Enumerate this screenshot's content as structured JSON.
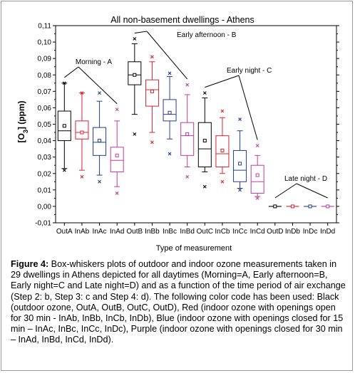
{
  "chart_data": {
    "type": "box",
    "title": "All non-basement dwellings - Athens",
    "xlabel": "Type of measurement",
    "ylabel_main": "[O",
    "ylabel_sub": "3",
    "ylabel_tail": "] (ppm)",
    "ylim": [
      -0.01,
      0.11
    ],
    "yticks": [
      "-0,01",
      "0,00",
      "0,01",
      "0,02",
      "0,03",
      "0,04",
      "0,05",
      "0,06",
      "0,07",
      "0,08",
      "0,09",
      "0,10",
      "0,11"
    ],
    "categories": [
      "OutA",
      "InAb",
      "InAc",
      "InAd",
      "OutB",
      "InBb",
      "InBc",
      "InBd",
      "OutC",
      "InCb",
      "InCc",
      "InCd",
      "OutD",
      "InDb",
      "InDc",
      "InDd"
    ],
    "colors": {
      "out": "#000000",
      "b": "#e0202a",
      "c": "#1f3f8f",
      "d": "#c03c98"
    },
    "boxes": [
      {
        "cat": "OutA",
        "color": "out",
        "min": 0.023,
        "q1": 0.04,
        "median": 0.046,
        "q3": 0.058,
        "max": 0.075,
        "mean": 0.049,
        "low": 0.022,
        "high": 0.075
      },
      {
        "cat": "InAb",
        "color": "b",
        "min": 0.022,
        "q1": 0.041,
        "median": 0.045,
        "q3": 0.052,
        "max": 0.069,
        "mean": 0.045,
        "low": 0.018,
        "high": 0.069
      },
      {
        "cat": "InAc",
        "color": "c",
        "min": 0.019,
        "q1": 0.031,
        "median": 0.039,
        "q3": 0.048,
        "max": 0.064,
        "mean": 0.04,
        "low": 0.015,
        "high": 0.069
      },
      {
        "cat": "InAd",
        "color": "d",
        "min": 0.012,
        "q1": 0.021,
        "median": 0.028,
        "q3": 0.036,
        "max": 0.052,
        "mean": 0.031,
        "low": 0.008,
        "high": 0.059
      },
      {
        "cat": "OutB",
        "color": "out",
        "min": 0.056,
        "q1": 0.074,
        "median": 0.08,
        "q3": 0.088,
        "max": 0.099,
        "mean": 0.08,
        "low": 0.044,
        "high": 0.102
      },
      {
        "cat": "InBb",
        "color": "b",
        "min": 0.045,
        "q1": 0.061,
        "median": 0.071,
        "q3": 0.077,
        "max": 0.088,
        "mean": 0.07,
        "low": 0.039,
        "high": 0.091
      },
      {
        "cat": "InBc",
        "color": "c",
        "min": 0.041,
        "q1": 0.052,
        "median": 0.056,
        "q3": 0.065,
        "max": 0.079,
        "mean": 0.057,
        "low": 0.032,
        "high": 0.081
      },
      {
        "cat": "InBd",
        "color": "d",
        "min": 0.024,
        "q1": 0.031,
        "median": 0.043,
        "q3": 0.051,
        "max": 0.068,
        "mean": 0.044,
        "low": 0.018,
        "high": 0.074
      },
      {
        "cat": "OutC",
        "color": "out",
        "min": 0.021,
        "q1": 0.024,
        "median": 0.035,
        "q3": 0.051,
        "max": 0.066,
        "mean": 0.04,
        "low": 0.012,
        "high": 0.069
      },
      {
        "cat": "InCb",
        "color": "b",
        "min": 0.02,
        "q1": 0.024,
        "median": 0.032,
        "q3": 0.043,
        "max": 0.054,
        "mean": 0.034,
        "low": 0.015,
        "high": 0.058
      },
      {
        "cat": "InCc",
        "color": "c",
        "min": 0.011,
        "q1": 0.015,
        "median": 0.022,
        "q3": 0.034,
        "max": 0.046,
        "mean": 0.026,
        "low": 0.01,
        "high": 0.053
      },
      {
        "cat": "InCd",
        "color": "d",
        "min": 0.006,
        "q1": 0.008,
        "median": 0.015,
        "q3": 0.025,
        "max": 0.031,
        "mean": 0.019,
        "low": 0.005,
        "high": 0.037
      },
      {
        "cat": "OutD",
        "color": "out",
        "min": 0.0,
        "q1": 0.0,
        "median": 0.0,
        "q3": 0.0,
        "max": 0.0,
        "mean": 0.0,
        "low": 0.0,
        "high": 0.0
      },
      {
        "cat": "InDb",
        "color": "b",
        "min": 0.0,
        "q1": 0.0,
        "median": 0.0,
        "q3": 0.0,
        "max": 0.0,
        "mean": 0.0,
        "low": 0.0,
        "high": 0.0
      },
      {
        "cat": "InDc",
        "color": "c",
        "min": 0.0,
        "q1": 0.0,
        "median": 0.0,
        "q3": 0.0,
        "max": 0.0,
        "mean": 0.0,
        "low": 0.0,
        "high": 0.0
      },
      {
        "cat": "InDd",
        "color": "d",
        "min": 0.0,
        "q1": 0.0,
        "median": 0.0,
        "q3": 0.0,
        "max": 0.0,
        "mean": 0.0,
        "low": 0.0,
        "high": 0.0
      }
    ],
    "annotations": [
      {
        "text": "Morning - A",
        "targets": [
          "OutA",
          "InAd"
        ]
      },
      {
        "text": "Early afternoon - B",
        "targets": [
          "OutB",
          "InBd"
        ]
      },
      {
        "text": "Early night - C",
        "targets": [
          "OutC",
          "InCd"
        ]
      },
      {
        "text": "Late night - D",
        "targets": [
          "OutD",
          "InDd"
        ]
      }
    ],
    "legend": "none",
    "grid": false
  },
  "caption": {
    "label": "Figure 4:",
    "text": " Box-whiskers plots of outdoor and indoor ozone measurements taken in 29 dwellings in Athens depicted for all daytimes (Morning=A, Early afternoon=B, Early night=C and Late night=D) and as a function of the time period of air exchange (Step 2: b, Step 3: c and Step 4: d). The following color code has been used: Black (outdoor ozone, OutA, OutB, OutC, OutD), Red (indoor ozone with openings open for 30 min - InAb, InBb, InCb, InDb), Blue (indoor ozone with openings closed for 15 min – InAc, InBc, InCc, InDc), Purple (indoor ozone with openings closed for 30 min – InAd, InBd, InCd, InDd)."
  }
}
